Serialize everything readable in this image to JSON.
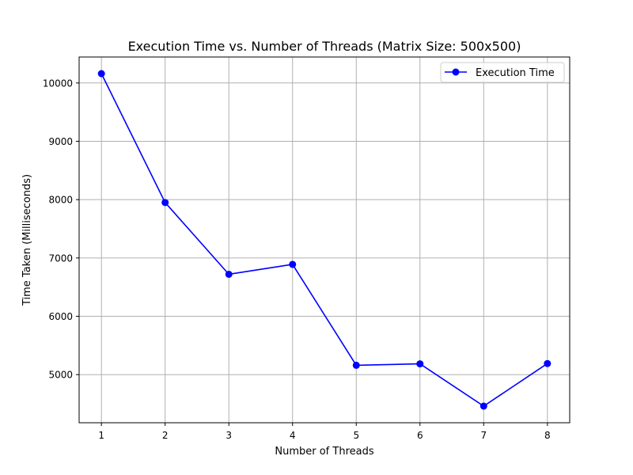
{
  "chart_data": {
    "type": "line",
    "title": "Execution Time vs. Number of Threads (Matrix Size: 500x500)",
    "xlabel": "Number of Threads",
    "ylabel": "Time Taken (Milliseconds)",
    "x": [
      1,
      2,
      3,
      4,
      5,
      6,
      7,
      8
    ],
    "series": [
      {
        "name": "Execution Time",
        "values": [
          10160,
          7950,
          6720,
          6890,
          5160,
          5185,
          4460,
          5190
        ],
        "color": "#0000ff",
        "marker": "circle"
      }
    ],
    "xticks": [
      1,
      2,
      3,
      4,
      5,
      6,
      7,
      8
    ],
    "yticks": [
      5000,
      6000,
      7000,
      8000,
      9000,
      10000
    ],
    "xlim": [
      0.65,
      8.35
    ],
    "ylim": [
      4175,
      10445
    ],
    "grid": true,
    "legend_position": "top-right",
    "colors": {
      "grid": "#b0b0b0",
      "axes": "#000000",
      "line": "#0000ff"
    }
  }
}
